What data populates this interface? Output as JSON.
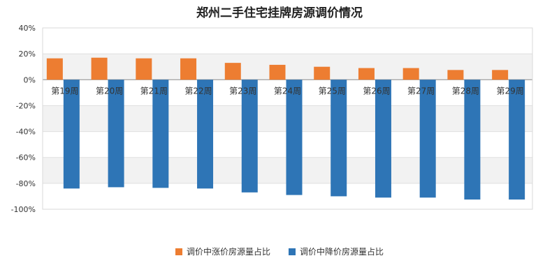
{
  "chart_data": {
    "type": "bar",
    "title": "郑州二手住宅挂牌房源调价情况",
    "categories": [
      "第19周",
      "第20周",
      "第21周",
      "第22周",
      "第23周",
      "第24周",
      "第25周",
      "第26周",
      "第27周",
      "第28周",
      "第29周"
    ],
    "series": [
      {
        "name": "调价中涨价房源量占比",
        "color": "#ED7D31",
        "values": [
          16.5,
          17.0,
          16.5,
          16.5,
          13.0,
          11.5,
          10.0,
          9.0,
          9.0,
          7.5,
          7.5
        ]
      },
      {
        "name": "调价中降价房源量占比",
        "color": "#2E75B6",
        "values": [
          -84.0,
          -83.0,
          -83.5,
          -84.0,
          -87.0,
          -89.0,
          -90.0,
          -91.0,
          -91.0,
          -92.5,
          -92.5
        ]
      }
    ],
    "ylim": [
      -100,
      40
    ],
    "yticks": [
      40,
      20,
      0,
      -20,
      -40,
      -60,
      -80,
      -100
    ],
    "ytick_labels": [
      "40%",
      "20%",
      "0%",
      "-20%",
      "-40%",
      "-60%",
      "-80%",
      "-100%"
    ],
    "legend_position": "bottom",
    "grid": true
  }
}
